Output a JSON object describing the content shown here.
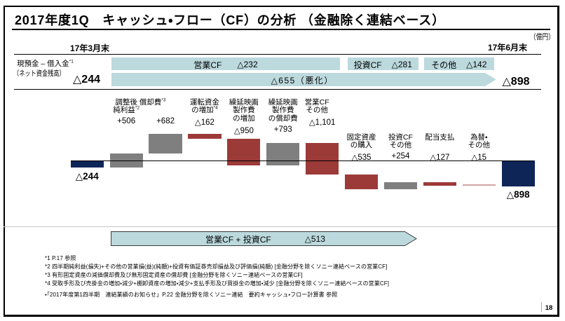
{
  "slide": {
    "title": "2017年度1Q　キャッシュ・フロー（CF）の分析 （金融除く連結ベース）",
    "unit_note": "（億円）",
    "page_number": "18"
  },
  "balance_strip": {
    "date_left": "17年3月末",
    "date_right": "17年6月末",
    "account_label_line1": "現預金 – 借入金*1",
    "account_label_line2": "（ネット資金残高）",
    "opening_balance": "△244",
    "closing_balance": "△898",
    "flow_bands": [
      {
        "label": "営業CF",
        "value": "△232"
      },
      {
        "label": "投資CF",
        "value": "△281"
      },
      {
        "label": "その他",
        "value": "△142"
      }
    ],
    "net_change_arrow": "△655（悪化）"
  },
  "summary_arrow": {
    "label": "営業CF + 投資CF",
    "value": "△513"
  },
  "footnotes": [
    "*1 P.17 参照",
    "*2 四半期純利益(損失)+その他の営業損(益)(純額)+投資有価証券売却損益及び評価損(純額) [金融分野を除くソニー連結ベースの営業CF]",
    "*3 有形固定資産の減価償却費及び無形固定資産の償却費 [金融分野を除くソニー連結ベースの営業CF]",
    "*4 受取手形及び売掛金の増加・減少+棚卸資産の増加・減少+支払手形及び買掛金の増加・減少 [金融分野を除くソニー連結ベースの営業CF]",
    "・「2017年度第1四半期　連結業績のお知らせ」P.22 金融分野を除くソニー連結　要約キャッシュ・フロー計算書 参照"
  ],
  "colors": {
    "navy": "#0e2558",
    "red": "#9c3a38",
    "red_light": "#cfa4a2",
    "gray": "#7f7f7f",
    "band_blue": "#bcd9dd",
    "arrow_outline": "#3c3c3c"
  },
  "chart_data": {
    "type": "waterfall",
    "unit": "億円",
    "zero_line": true,
    "bars": [
      {
        "label_lines": [],
        "value": -244,
        "display": "△244",
        "kind": "start",
        "color_key": "navy"
      },
      {
        "label_lines": [
          "調整後",
          "純利益*2"
        ],
        "value": 506,
        "display": "+506",
        "kind": "delta",
        "color_key": "gray"
      },
      {
        "label_lines": [
          "償却費*3"
        ],
        "value": 682,
        "display": "+682",
        "kind": "delta",
        "color_key": "gray"
      },
      {
        "label_lines": [
          "運転資金",
          "の増加*4"
        ],
        "value": -162,
        "display": "△162",
        "kind": "delta",
        "color_key": "red"
      },
      {
        "label_lines": [
          "繰延映画",
          "製作費",
          "の増加"
        ],
        "value": -950,
        "display": "△950",
        "kind": "delta",
        "color_key": "red"
      },
      {
        "label_lines": [
          "繰延映画",
          "製作費",
          "の償却費"
        ],
        "value": 793,
        "display": "+793",
        "kind": "delta",
        "color_key": "gray"
      },
      {
        "label_lines": [
          "営業CF",
          "その他"
        ],
        "value": -1101,
        "display": "△1,101",
        "kind": "delta",
        "color_key": "red"
      },
      {
        "label_lines": [
          "固定資産",
          "の購入"
        ],
        "value": -535,
        "display": "△535",
        "kind": "delta",
        "color_key": "red"
      },
      {
        "label_lines": [
          "投資CF",
          "その他"
        ],
        "value": 254,
        "display": "+254",
        "kind": "delta",
        "color_key": "gray"
      },
      {
        "label_lines": [
          "配当支払"
        ],
        "value": -127,
        "display": "△127",
        "kind": "delta",
        "color_key": "red"
      },
      {
        "label_lines": [
          "為替・",
          "その他"
        ],
        "value": -15,
        "display": "△15",
        "kind": "delta",
        "color_key": "red_light"
      },
      {
        "label_lines": [],
        "value": -898,
        "display": "△898",
        "kind": "end",
        "color_key": "navy"
      }
    ]
  }
}
